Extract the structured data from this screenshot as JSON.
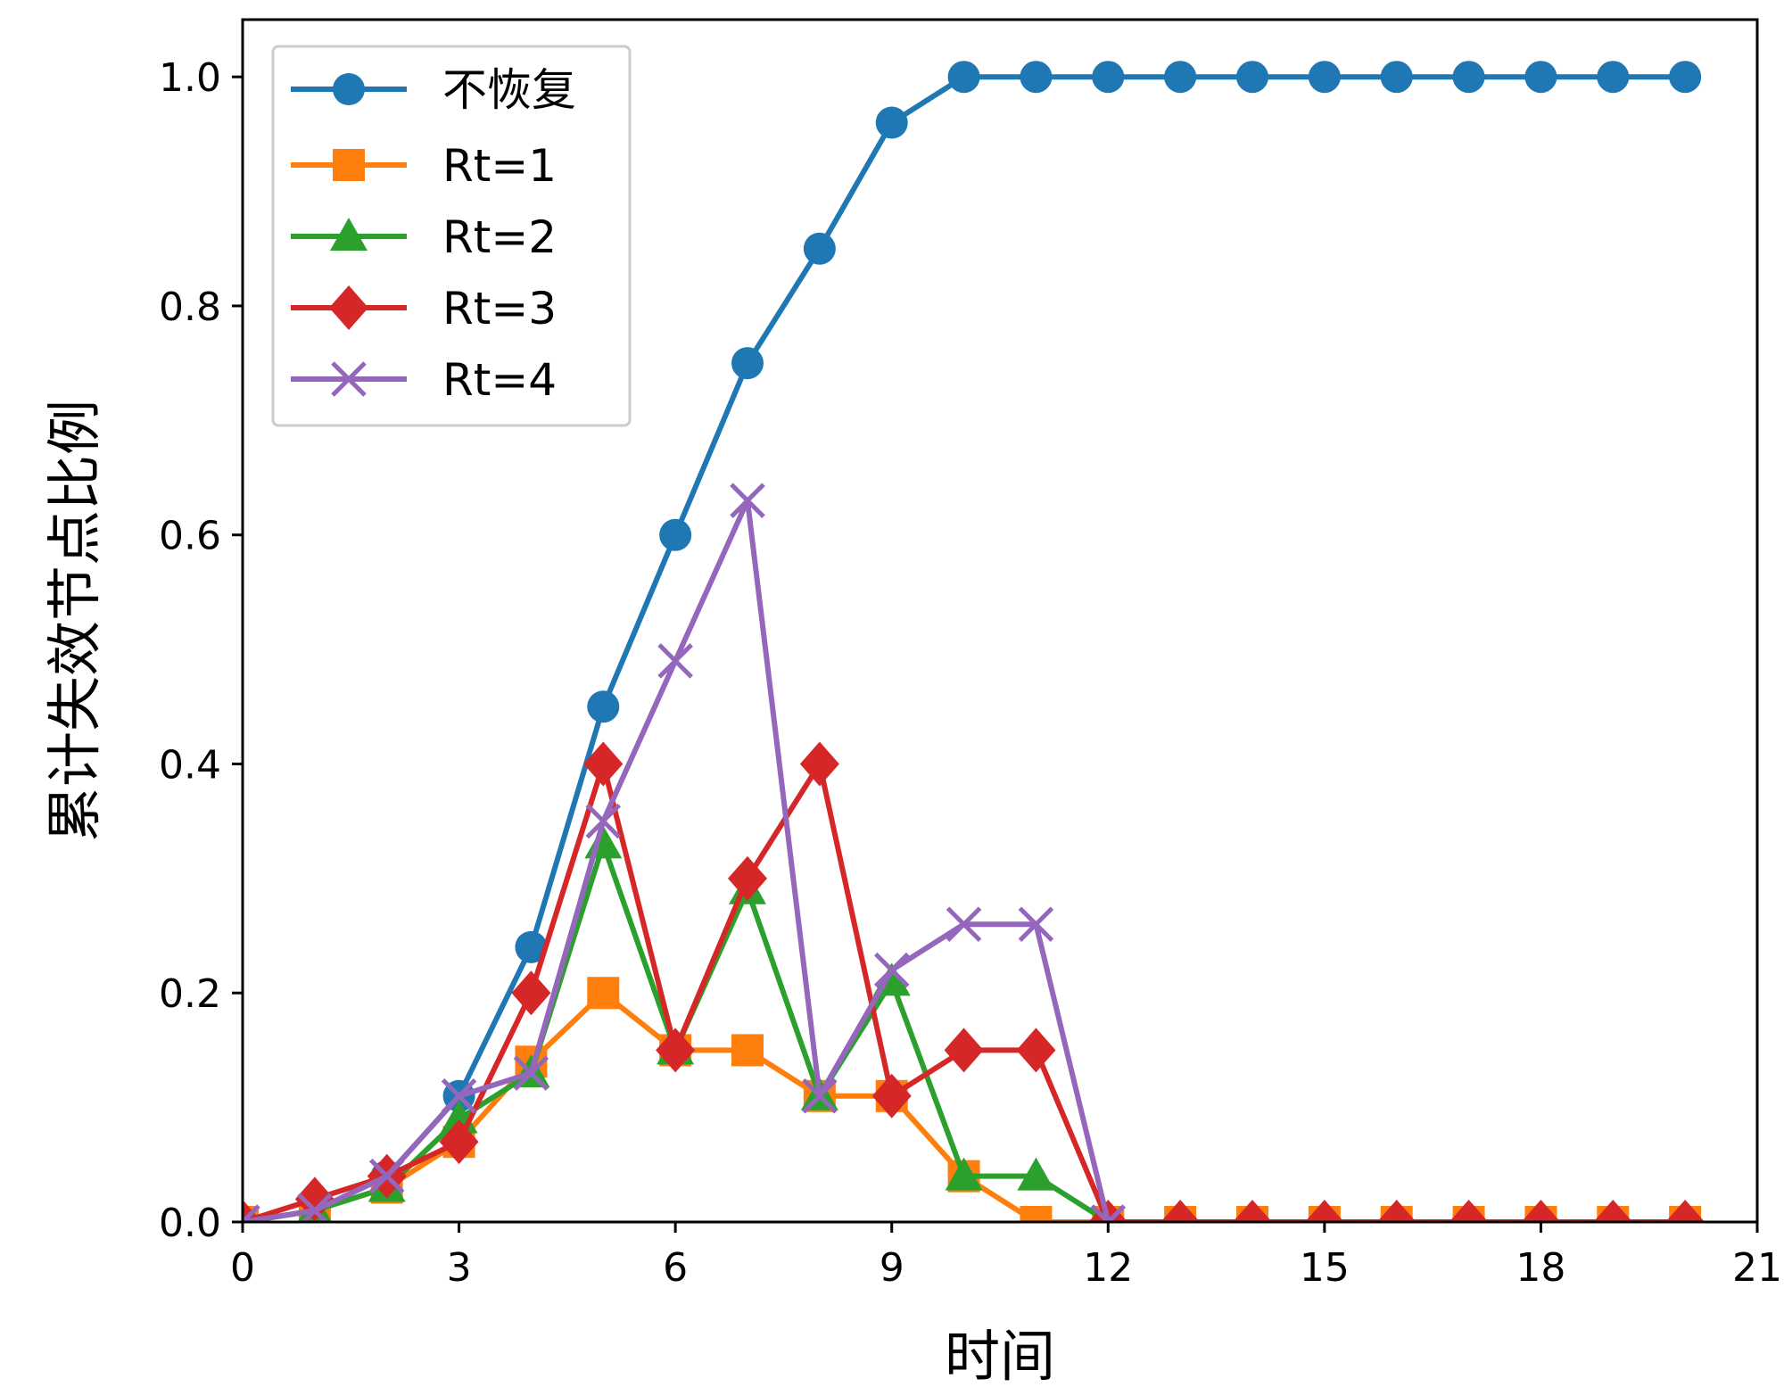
{
  "chart_data": {
    "type": "line",
    "title": "",
    "xlabel": "时间",
    "ylabel": "累计失效节点比例",
    "xlim": [
      0,
      21
    ],
    "ylim": [
      0,
      1.05
    ],
    "xticks": [
      0,
      3,
      6,
      9,
      12,
      15,
      18,
      21
    ],
    "yticks": [
      "0.0",
      "0.2",
      "0.4",
      "0.6",
      "0.8",
      "1.0"
    ],
    "grid": false,
    "legend_position": "top-left",
    "series": [
      {
        "name": "不恢复",
        "color": "#1f77b4",
        "marker": "circle",
        "x": [
          0,
          1,
          2,
          3,
          4,
          5,
          6,
          7,
          8,
          9,
          10,
          11,
          12,
          13,
          14,
          15,
          16,
          17,
          18,
          19,
          20
        ],
        "y": [
          0.0,
          0.01,
          0.04,
          0.11,
          0.24,
          0.45,
          0.6,
          0.75,
          0.85,
          0.96,
          1.0,
          1.0,
          1.0,
          1.0,
          1.0,
          1.0,
          1.0,
          1.0,
          1.0,
          1.0,
          1.0
        ]
      },
      {
        "name": "Rt=1",
        "color": "#ff7f0e",
        "marker": "square",
        "x": [
          0,
          1,
          2,
          3,
          4,
          5,
          6,
          7,
          8,
          9,
          10,
          11,
          12,
          13,
          14,
          15,
          16,
          17,
          18,
          19,
          20
        ],
        "y": [
          0.0,
          0.01,
          0.03,
          0.07,
          0.14,
          0.2,
          0.15,
          0.15,
          0.11,
          0.11,
          0.04,
          0.0,
          0.0,
          0.0,
          0.0,
          0.0,
          0.0,
          0.0,
          0.0,
          0.0,
          0.0
        ]
      },
      {
        "name": "Rt=2",
        "color": "#2ca02c",
        "marker": "triangle",
        "x": [
          0,
          1,
          2,
          3,
          4,
          5,
          6,
          7,
          8,
          9,
          10,
          11,
          12,
          13,
          14,
          15,
          16,
          17,
          18,
          19,
          20
        ],
        "y": [
          0.0,
          0.01,
          0.03,
          0.09,
          0.13,
          0.33,
          0.15,
          0.29,
          0.11,
          0.21,
          0.04,
          0.04,
          0.0,
          0.0,
          0.0,
          0.0,
          0.0,
          0.0,
          0.0,
          0.0,
          0.0
        ]
      },
      {
        "name": "Rt=3",
        "color": "#d62728",
        "marker": "diamond",
        "x": [
          0,
          1,
          2,
          3,
          4,
          5,
          6,
          7,
          8,
          9,
          10,
          11,
          12,
          13,
          14,
          15,
          16,
          17,
          18,
          19,
          20
        ],
        "y": [
          0.0,
          0.02,
          0.04,
          0.07,
          0.2,
          0.4,
          0.15,
          0.3,
          0.4,
          0.11,
          0.15,
          0.15,
          0.0,
          0.0,
          0.0,
          0.0,
          0.0,
          0.0,
          0.0,
          0.0,
          0.0
        ]
      },
      {
        "name": "Rt=4",
        "color": "#9467bd",
        "marker": "x",
        "x": [
          0,
          1,
          2,
          3,
          4,
          5,
          6,
          7,
          8,
          9,
          10,
          11,
          12
        ],
        "y": [
          0.0,
          0.01,
          0.04,
          0.11,
          0.13,
          0.35,
          0.49,
          0.63,
          0.11,
          0.22,
          0.26,
          0.26,
          0.0
        ]
      }
    ]
  }
}
